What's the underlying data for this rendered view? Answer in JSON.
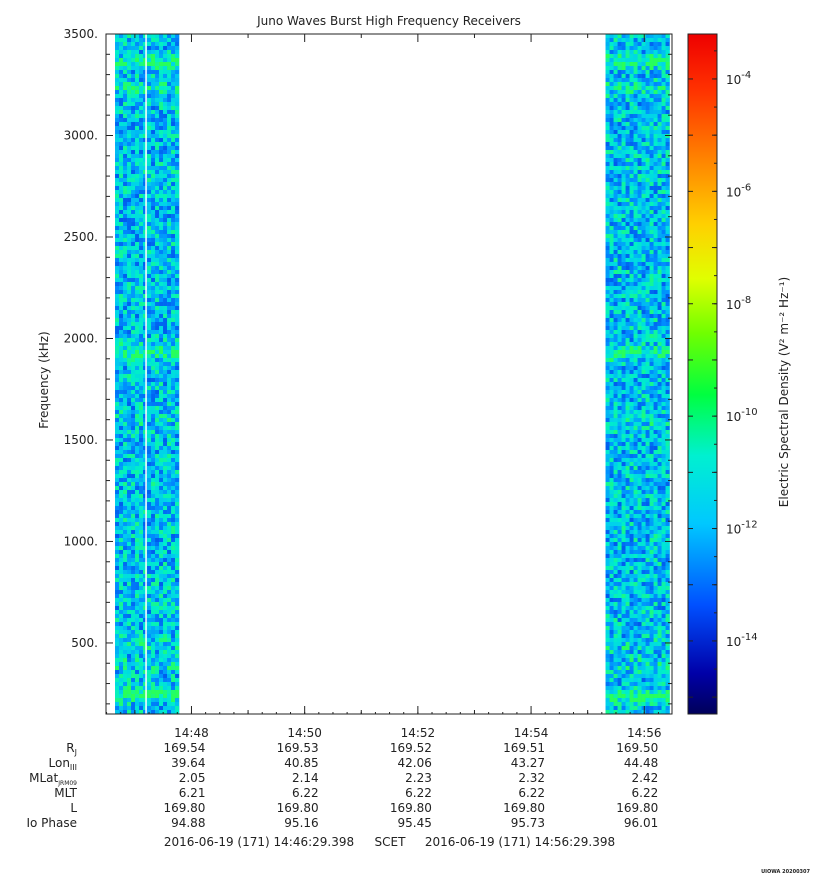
{
  "chart_data": {
    "type": "heatmap",
    "title": "Juno Waves Burst High Frequency Receivers",
    "ylabel": "Frequency (kHz)",
    "ylim": [
      150,
      3500
    ],
    "y_ticks": [
      "500.",
      "1000.",
      "1500.",
      "2000.",
      "2500.",
      "3000.",
      "3500."
    ],
    "y_tick_values": [
      500,
      1000,
      1500,
      2000,
      2500,
      3000,
      3500
    ],
    "x_range": [
      "14:46:29.398",
      "14:56:29.398"
    ],
    "x_ticks": [
      "14:48",
      "14:50",
      "14:52",
      "14:54",
      "14:56"
    ],
    "x_tick_values": [
      "14:48",
      "14:50",
      "14:52",
      "14:54",
      "14:56"
    ],
    "data_blocks": [
      {
        "start": "14:46:39",
        "end": "14:47:47"
      },
      {
        "start": "14:55:19",
        "end": "14:56:27"
      }
    ],
    "enhanced_bands_khz": [
      {
        "center": 250,
        "strength": 0.85
      },
      {
        "center": 1940,
        "strength": 0.75
      },
      {
        "center": 3370,
        "strength": 0.7
      },
      {
        "center": 3240,
        "strength": 0.3
      },
      {
        "center": 1600,
        "strength": 0.15
      },
      {
        "center": 500,
        "strength": 0.2
      },
      {
        "center": 400,
        "strength": 0.25
      }
    ],
    "colorbar": {
      "label": "Electric Spectral Density (V² m⁻² Hz⁻¹)",
      "scale": "log",
      "range_exponent": [
        -15.3,
        -3.2
      ],
      "tick_exponents": [
        -14,
        -12,
        -10,
        -8,
        -6,
        -4
      ],
      "tick_labels": [
        "10",
        "10",
        "10",
        "10",
        "10",
        "10"
      ],
      "tick_superscripts": [
        "-14",
        "-12",
        "-10",
        "-8",
        "-6",
        "-4"
      ],
      "colormap": "rainbow"
    }
  },
  "ephemeris": {
    "rows": [
      {
        "label": "R",
        "sub": "J",
        "values": [
          "169.54",
          "169.53",
          "169.52",
          "169.51",
          "169.50"
        ]
      },
      {
        "label": "Lon",
        "sub": "III",
        "values": [
          "39.64",
          "40.85",
          "42.06",
          "43.27",
          "44.48"
        ]
      },
      {
        "label": "MLat",
        "sub": "JRM09",
        "values": [
          "2.05",
          "2.14",
          "2.23",
          "2.32",
          "2.42"
        ]
      },
      {
        "label": "MLT",
        "sub": "",
        "values": [
          "6.21",
          "6.22",
          "6.22",
          "6.22",
          "6.22"
        ]
      },
      {
        "label": "L",
        "sub": "",
        "values": [
          "169.80",
          "169.80",
          "169.80",
          "169.80",
          "169.80"
        ]
      },
      {
        "label": "Io Phase",
        "sub": "",
        "values": [
          "94.88",
          "95.16",
          "95.45",
          "95.73",
          "96.01"
        ]
      }
    ]
  },
  "footer": {
    "start": "2016-06-19 (171) 14:46:29.398",
    "label": "SCET",
    "end": "2016-06-19 (171) 14:56:29.398"
  },
  "credit": "UIOWA 20200307"
}
